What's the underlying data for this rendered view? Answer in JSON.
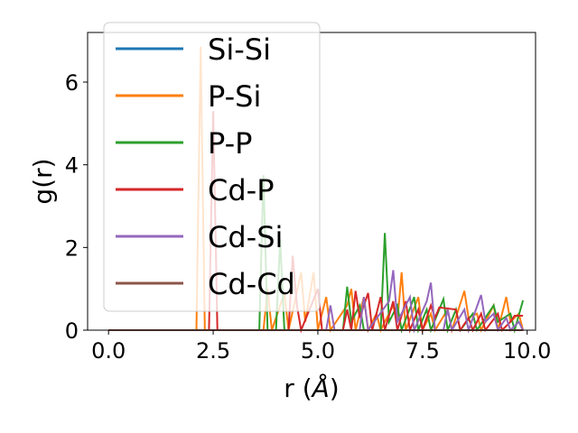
{
  "chart_data": {
    "type": "line",
    "title": "",
    "xlabel": "r (",
    "xlabel_symbol": "Å",
    "xlabel_close": ")",
    "ylabel": "g(r)",
    "xlim": [
      -0.5,
      10.2
    ],
    "ylim": [
      0,
      7.2
    ],
    "xticks": [
      0.0,
      2.5,
      5.0,
      7.5,
      10.0
    ],
    "xtick_labels": [
      "0.0",
      "2.5",
      "5.0",
      "7.5",
      "10.0"
    ],
    "yticks": [
      0,
      2,
      4,
      6
    ],
    "ytick_labels": [
      "0",
      "2",
      "4",
      "6"
    ],
    "legend_position": "upper-left",
    "grid": false,
    "series": [
      {
        "name": "Si-Si",
        "color": "#1f77b4",
        "points": [
          [
            0,
            0
          ],
          [
            9.9,
            0
          ]
        ]
      },
      {
        "name": "P-Si",
        "color": "#ff7f0e",
        "points": [
          [
            0,
            0
          ],
          [
            2.1,
            0
          ],
          [
            2.2,
            6.85
          ],
          [
            2.3,
            0
          ],
          [
            3.7,
            0
          ],
          [
            3.8,
            1.0
          ],
          [
            3.9,
            0
          ],
          [
            4.2,
            0.9
          ],
          [
            4.3,
            0
          ],
          [
            4.6,
            1.4
          ],
          [
            4.7,
            0.2
          ],
          [
            4.9,
            1.4
          ],
          [
            5.0,
            0
          ],
          [
            5.2,
            0.8
          ],
          [
            5.3,
            0
          ],
          [
            5.7,
            0.6
          ],
          [
            5.8,
            1.0
          ],
          [
            5.9,
            0
          ],
          [
            6.1,
            0.8
          ],
          [
            6.2,
            0
          ],
          [
            6.4,
            0.4
          ],
          [
            6.5,
            0
          ],
          [
            6.8,
            0.6
          ],
          [
            6.9,
            0.2
          ],
          [
            7.0,
            1.4
          ],
          [
            7.1,
            0
          ],
          [
            7.4,
            0.8
          ],
          [
            7.5,
            0
          ],
          [
            7.7,
            0.4
          ],
          [
            7.8,
            0
          ],
          [
            8.1,
            0.5
          ],
          [
            8.2,
            0
          ],
          [
            8.5,
            0.95
          ],
          [
            8.6,
            0.3
          ],
          [
            8.8,
            0.4
          ],
          [
            8.9,
            0
          ],
          [
            9.2,
            0.6
          ],
          [
            9.3,
            0
          ],
          [
            9.5,
            0.8
          ],
          [
            9.6,
            0.2
          ],
          [
            9.8,
            0.4
          ],
          [
            9.9,
            0
          ]
        ]
      },
      {
        "name": "P-P",
        "color": "#2ca02c",
        "points": [
          [
            0,
            0
          ],
          [
            3.6,
            0
          ],
          [
            3.7,
            3.75
          ],
          [
            3.8,
            0
          ],
          [
            4.0,
            0
          ],
          [
            4.1,
            2.2
          ],
          [
            4.2,
            0
          ],
          [
            5.6,
            0
          ],
          [
            5.7,
            1.05
          ],
          [
            5.8,
            0.2
          ],
          [
            6.0,
            0.6
          ],
          [
            6.1,
            0
          ],
          [
            6.5,
            0
          ],
          [
            6.6,
            2.35
          ],
          [
            6.7,
            0.2
          ],
          [
            6.9,
            0.6
          ],
          [
            7.0,
            0
          ],
          [
            7.3,
            0.8
          ],
          [
            7.4,
            0
          ],
          [
            7.6,
            0.5
          ],
          [
            7.7,
            0
          ],
          [
            8.0,
            0.75
          ],
          [
            8.1,
            0
          ],
          [
            8.3,
            0.5
          ],
          [
            8.4,
            0
          ],
          [
            8.7,
            0.4
          ],
          [
            8.8,
            0
          ],
          [
            9.2,
            0.6
          ],
          [
            9.3,
            0.2
          ],
          [
            9.6,
            0.4
          ],
          [
            9.7,
            0
          ],
          [
            9.9,
            0.72
          ]
        ]
      },
      {
        "name": "Cd-P",
        "color": "#d62728",
        "points": [
          [
            0,
            0
          ],
          [
            2.4,
            0
          ],
          [
            2.5,
            5.3
          ],
          [
            2.6,
            0
          ],
          [
            4.3,
            0
          ],
          [
            4.4,
            1.8
          ],
          [
            4.5,
            0.6
          ],
          [
            4.6,
            0
          ],
          [
            5.0,
            1.0
          ],
          [
            5.1,
            0
          ],
          [
            5.6,
            0
          ],
          [
            5.7,
            0.5
          ],
          [
            5.8,
            0
          ],
          [
            5.9,
            0.95
          ],
          [
            6.0,
            0.3
          ],
          [
            6.2,
            0.9
          ],
          [
            6.3,
            0
          ],
          [
            6.5,
            0.8
          ],
          [
            6.6,
            0
          ],
          [
            6.8,
            0.7
          ],
          [
            6.9,
            0
          ],
          [
            7.1,
            0.7
          ],
          [
            7.2,
            0
          ],
          [
            7.4,
            0.5
          ],
          [
            7.5,
            0
          ],
          [
            7.7,
            0.6
          ],
          [
            7.8,
            0.3
          ],
          [
            7.9,
            0.55
          ],
          [
            8.3,
            0.5
          ],
          [
            8.4,
            0
          ],
          [
            8.6,
            0.3
          ],
          [
            8.7,
            0
          ],
          [
            8.9,
            0.4
          ],
          [
            9.0,
            0
          ],
          [
            9.3,
            0.4
          ],
          [
            9.4,
            0
          ],
          [
            9.6,
            0.2
          ],
          [
            9.7,
            0.35
          ],
          [
            9.9,
            0.35
          ]
        ]
      },
      {
        "name": "Cd-Si",
        "color": "#9467bd",
        "points": [
          [
            0,
            0
          ],
          [
            5.2,
            0
          ],
          [
            5.3,
            0.6
          ],
          [
            5.4,
            0
          ],
          [
            6.0,
            0
          ],
          [
            6.1,
            0.8
          ],
          [
            6.2,
            0
          ],
          [
            6.7,
            0.7
          ],
          [
            6.8,
            1.45
          ],
          [
            6.9,
            0.2
          ],
          [
            7.2,
            0.8
          ],
          [
            7.3,
            0
          ],
          [
            7.6,
            0.7
          ],
          [
            7.7,
            1.15
          ],
          [
            7.8,
            0
          ],
          [
            8.0,
            0
          ],
          [
            8.1,
            0.5
          ],
          [
            8.2,
            0
          ],
          [
            8.5,
            0.5
          ],
          [
            8.6,
            0
          ],
          [
            8.9,
            0.85
          ],
          [
            9.0,
            0.2
          ],
          [
            9.2,
            0.4
          ],
          [
            9.3,
            0
          ],
          [
            9.5,
            0.3
          ],
          [
            9.6,
            0
          ],
          [
            9.8,
            0.2
          ],
          [
            9.9,
            0
          ]
        ]
      },
      {
        "name": "Cd-Cd",
        "color": "#8c564b",
        "points": [
          [
            0,
            0
          ],
          [
            9.9,
            0
          ]
        ]
      }
    ]
  }
}
